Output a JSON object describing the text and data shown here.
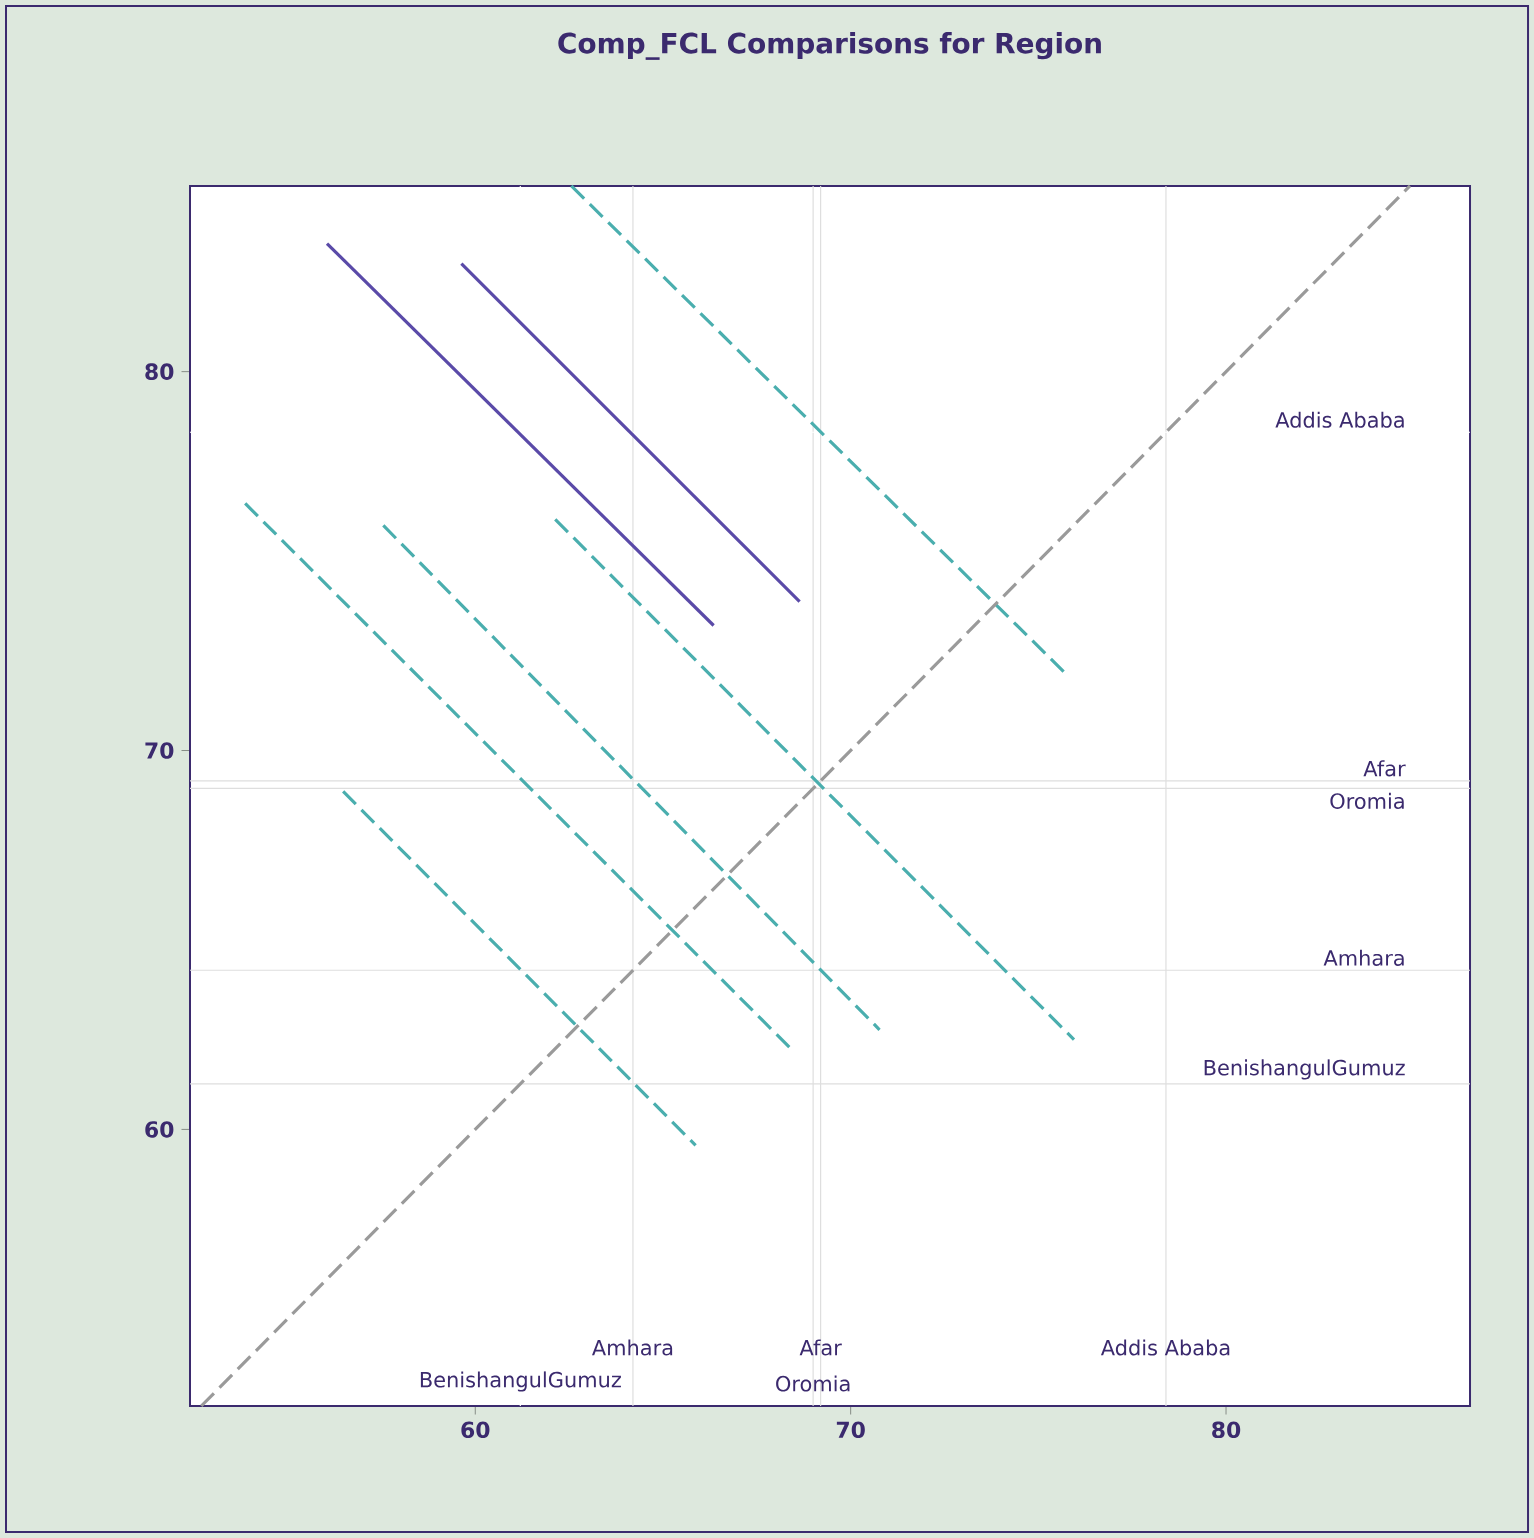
{
  "chart_data": {
    "type": "line",
    "title": "Comp_FCL Comparisons for Region",
    "xlim": [
      52.4,
      86.5
    ],
    "ylim": [
      52.7,
      84.9
    ],
    "xticks": [
      60,
      70,
      80
    ],
    "yticks": [
      60,
      70,
      80
    ],
    "grid": false,
    "marker": "none",
    "series": [
      {
        "color": "#5a4aa8",
        "line_style": "solid",
        "x": [
          56.05,
          66.35
        ],
        "values": [
          83.38,
          73.3
        ]
      },
      {
        "color": "#5a4aa8",
        "line_style": "solid",
        "x": [
          59.63,
          68.64
        ],
        "values": [
          82.85,
          73.93
        ]
      },
      {
        "color": "#4aaeae",
        "line_style": "dashed",
        "x": [
          62.56,
          75.73
        ],
        "values": [
          84.9,
          72.03
        ]
      },
      {
        "color": "#4aaeae",
        "line_style": "dashed",
        "x": [
          53.87,
          68.48
        ],
        "values": [
          76.52,
          62.06
        ]
      },
      {
        "color": "#4aaeae",
        "line_style": "dashed",
        "x": [
          57.55,
          70.77
        ],
        "values": [
          75.94,
          62.63
        ]
      },
      {
        "color": "#4aaeae",
        "line_style": "dashed",
        "x": [
          62.13,
          75.95
        ],
        "values": [
          76.1,
          62.37
        ]
      },
      {
        "color": "#4aaeae",
        "line_style": "dashed",
        "x": [
          56.48,
          65.87
        ],
        "values": [
          68.92,
          59.58
        ]
      },
      {
        "color": "#9a9a9a",
        "line_style": "dashed",
        "x": [
          52.7,
          84.9
        ],
        "values": [
          52.7,
          84.9
        ]
      }
    ],
    "ref_lines": [
      {
        "axis": "x",
        "value": 69.2,
        "label": "Afar",
        "color": "#dedede"
      },
      {
        "axis": "x",
        "value": 69.0,
        "label": "Oromia",
        "color": "#dedede"
      },
      {
        "axis": "x",
        "value": 64.2,
        "label": "Amhara",
        "color": "#dedede"
      },
      {
        "axis": "x",
        "value": 61.2,
        "label": "BenishangulGumuz",
        "color": "#ffffff"
      },
      {
        "axis": "x",
        "value": 78.4,
        "label": "Addis Ababa",
        "color": "#dedede"
      },
      {
        "axis": "y",
        "value": 69.2,
        "label": "Afar",
        "color": "#dedede"
      },
      {
        "axis": "y",
        "value": 69.0,
        "label": "Oromia",
        "color": "#dedede"
      },
      {
        "axis": "y",
        "value": 64.2,
        "label": "Amhara",
        "color": "#dedede"
      },
      {
        "axis": "y",
        "value": 61.2,
        "label": "BenishangulGumuz",
        "color": "#dedede"
      },
      {
        "axis": "y",
        "value": 78.4,
        "label": "Addis Ababa",
        "color": "#ffffff"
      }
    ]
  }
}
